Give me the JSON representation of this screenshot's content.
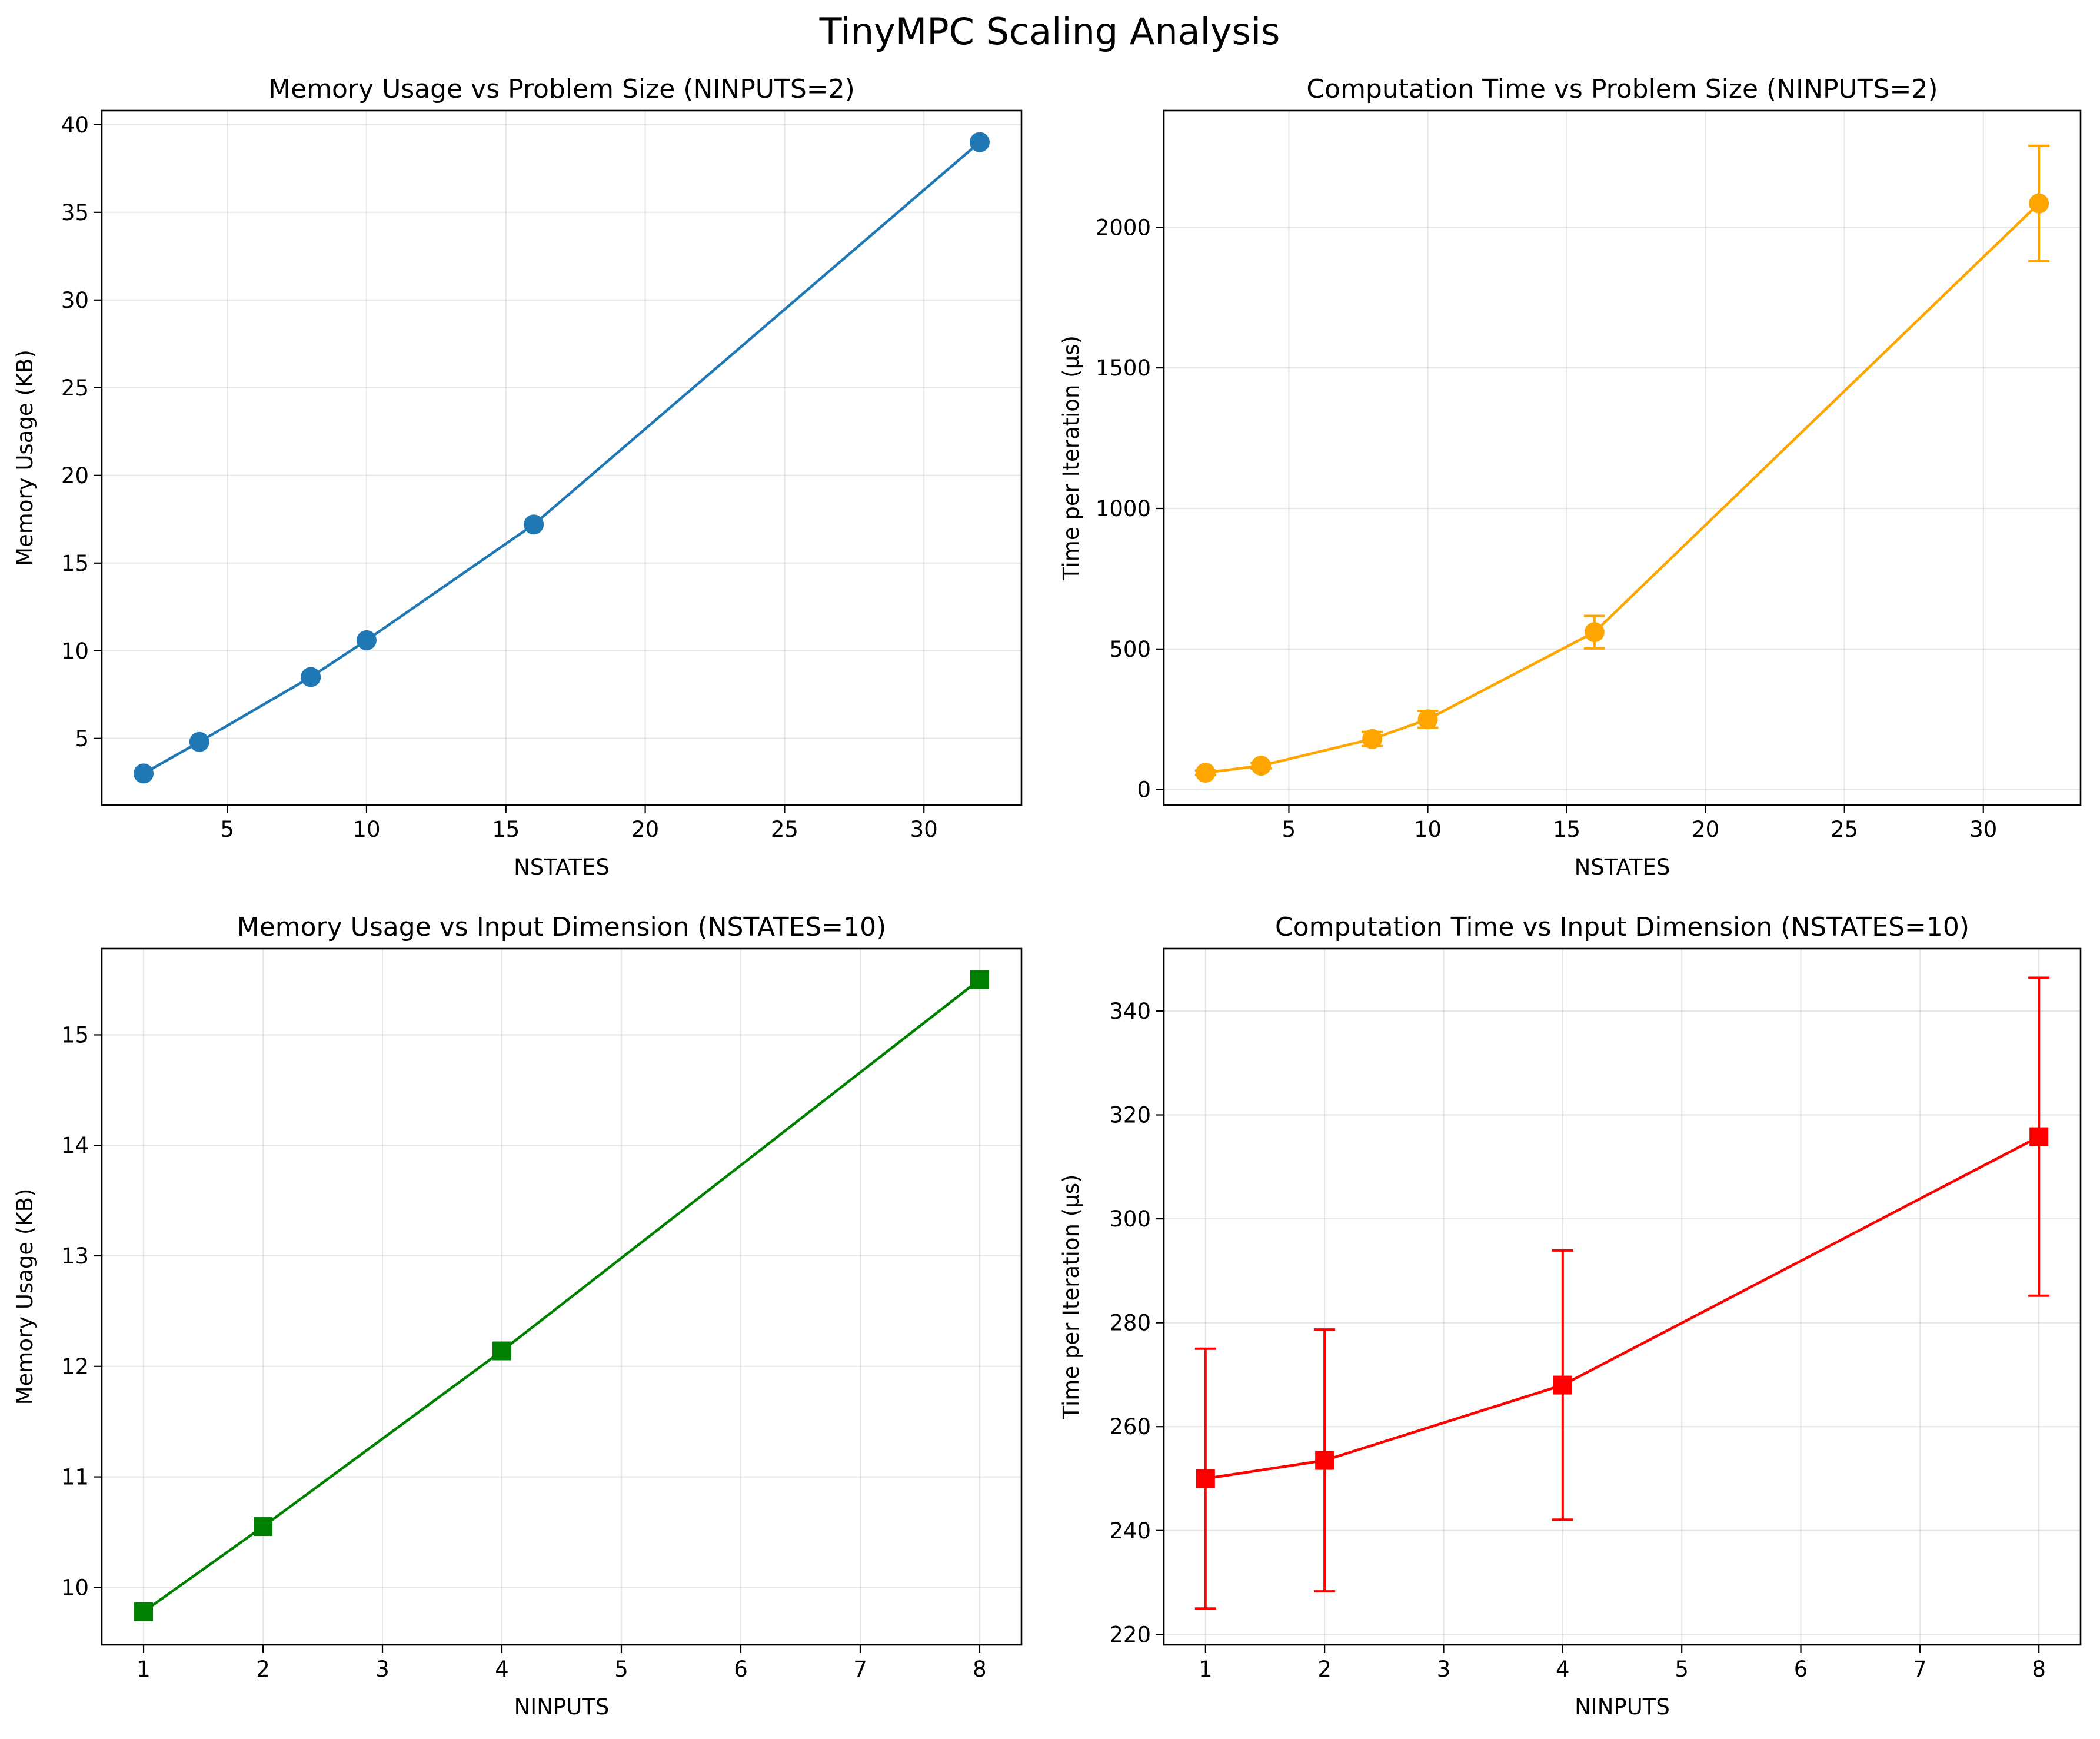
{
  "figure": {
    "suptitle": "TinyMPC Scaling Analysis"
  },
  "chart_data": [
    {
      "type": "line",
      "title": "Memory Usage vs Problem Size (NINPUTS=2)",
      "xlabel": "NSTATES",
      "ylabel": "Memory Usage (KB)",
      "xlim": [
        0.5,
        33.5
      ],
      "ylim": [
        1.2,
        40.8
      ],
      "xticks": [
        5,
        10,
        15,
        20,
        25,
        30
      ],
      "yticks": [
        5,
        10,
        15,
        20,
        25,
        30,
        35,
        40
      ],
      "grid": true,
      "marker": "circle",
      "color": "#1f77b4",
      "x": [
        2,
        4,
        8,
        10,
        16,
        32
      ],
      "y": [
        3.0,
        4.8,
        8.5,
        10.6,
        17.2,
        39.0
      ]
    },
    {
      "type": "line",
      "title": "Computation Time vs Problem Size (NINPUTS=2)",
      "xlabel": "NSTATES",
      "ylabel": "Time per Iteration (μs)",
      "xlim": [
        0.5,
        33.5
      ],
      "ylim": [
        -55,
        2415
      ],
      "xticks": [
        5,
        10,
        15,
        20,
        25,
        30
      ],
      "yticks": [
        0,
        500,
        1000,
        1500,
        2000
      ],
      "grid": true,
      "marker": "circle",
      "color": "#ffa500",
      "x": [
        2,
        4,
        8,
        10,
        16,
        32
      ],
      "y": [
        60,
        85,
        180,
        250,
        560,
        2085
      ],
      "yerr": [
        8,
        10,
        25,
        30,
        58,
        205
      ]
    },
    {
      "type": "line",
      "title": "Memory Usage vs Input Dimension (NSTATES=10)",
      "xlabel": "NINPUTS",
      "ylabel": "Memory Usage (KB)",
      "xlim": [
        0.65,
        8.35
      ],
      "ylim": [
        9.48,
        15.78
      ],
      "xticks": [
        1,
        2,
        3,
        4,
        5,
        6,
        7,
        8
      ],
      "yticks": [
        10,
        11,
        12,
        13,
        14,
        15
      ],
      "grid": true,
      "marker": "square",
      "color": "#008000",
      "x": [
        1,
        2,
        4,
        8
      ],
      "y": [
        9.78,
        10.55,
        12.14,
        15.5
      ]
    },
    {
      "type": "line",
      "title": "Computation Time vs Input Dimension (NSTATES=10)",
      "xlabel": "NINPUTS",
      "ylabel": "Time per Iteration (μs)",
      "xlim": [
        0.65,
        8.35
      ],
      "ylim": [
        218,
        352
      ],
      "xticks": [
        1,
        2,
        3,
        4,
        5,
        6,
        7,
        8
      ],
      "yticks": [
        220,
        240,
        260,
        280,
        300,
        320,
        340
      ],
      "grid": true,
      "marker": "square",
      "color": "#ff0000",
      "x": [
        1,
        2,
        4,
        8
      ],
      "y": [
        250.0,
        253.5,
        268.0,
        315.8
      ],
      "yerr": [
        25.0,
        25.2,
        25.9,
        30.6
      ]
    }
  ]
}
